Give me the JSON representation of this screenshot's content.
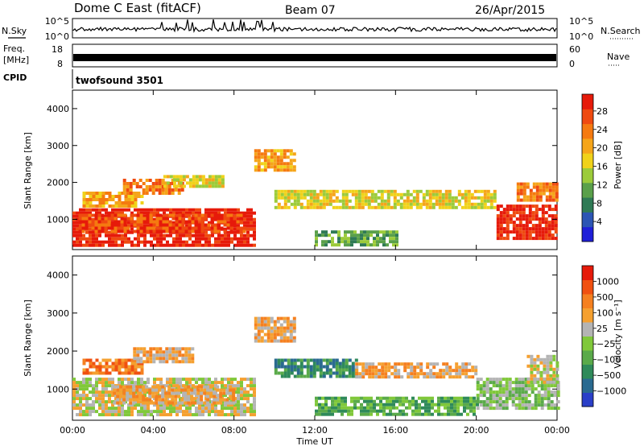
{
  "header": {
    "station": "Dome C East (fitACF)",
    "beam": "Beam 07",
    "date": "26/Apr/2015"
  },
  "aux_panels": {
    "nsky_label": "N.Sky",
    "nsearch_label": "N.Search",
    "nsky_ticks": [
      "10^5",
      "10^0"
    ],
    "nsearch_ticks": [
      "10^5",
      "10^0"
    ],
    "freq_label_1": "Freq.",
    "freq_label_2": "[MHz]",
    "freq_ticks": [
      "18",
      "8"
    ],
    "nave_label": "Nave",
    "nave_ticks": [
      "60",
      "0"
    ],
    "cpid_label": "CPID",
    "cpid_value": "twofsound 3501"
  },
  "chart_data": [
    {
      "type": "heatmap",
      "panel": "power",
      "ylabel": "Slant Range [km]",
      "yticks": [
        1000,
        2000,
        3000,
        4000
      ],
      "ylim": [
        180,
        4500
      ],
      "xticks": [
        "00:00",
        "04:00",
        "08:00",
        "12:00",
        "16:00",
        "20:00",
        "00:00"
      ],
      "xlim_hours": [
        0,
        24
      ],
      "colorbar": {
        "label": "Power [dB]",
        "ticks": [
          "4",
          "8",
          "12",
          "16",
          "20",
          "24",
          "28"
        ],
        "colors": [
          "#1f1fd8",
          "#2c55b4",
          "#2f7a55",
          "#5aa04a",
          "#9ccb3a",
          "#f0d21a",
          "#f5a51a",
          "#f57a10",
          "#ef4a10",
          "#e61a0a"
        ]
      },
      "regions": [
        {
          "t0": 0.0,
          "t1": 9.0,
          "r0": 300,
          "r1": 1300,
          "level": 9
        },
        {
          "t0": 0.3,
          "t1": 8.5,
          "r0": 700,
          "r1": 1150,
          "level": 8
        },
        {
          "t0": 0.5,
          "t1": 3.5,
          "r0": 1350,
          "r1": 1750,
          "level": 6
        },
        {
          "t0": 2.5,
          "t1": 5.5,
          "r0": 1700,
          "r1": 2100,
          "level": 7
        },
        {
          "t0": 4.5,
          "t1": 7.5,
          "r0": 1900,
          "r1": 2200,
          "level": 5
        },
        {
          "t0": 9.0,
          "t1": 11.0,
          "r0": 2300,
          "r1": 2900,
          "level": 6
        },
        {
          "t0": 10.0,
          "t1": 21.0,
          "r0": 1300,
          "r1": 1800,
          "level": 5
        },
        {
          "t0": 12.0,
          "t1": 16.0,
          "r0": 300,
          "r1": 700,
          "level": 3
        },
        {
          "t0": 21.0,
          "t1": 24.0,
          "r0": 500,
          "r1": 1400,
          "level": 9
        },
        {
          "t0": 22.0,
          "t1": 24.0,
          "r0": 1500,
          "r1": 2000,
          "level": 7
        }
      ]
    },
    {
      "type": "heatmap",
      "panel": "velocity",
      "ylabel": "Slant Range [km]",
      "yticks": [
        1000,
        2000,
        3000,
        4000
      ],
      "ylim": [
        180,
        4500
      ],
      "xticks": [
        "00:00",
        "04:00",
        "08:00",
        "12:00",
        "16:00",
        "20:00",
        "00:00"
      ],
      "xlim_hours": [
        0,
        24
      ],
      "xlabel": "Time UT",
      "colorbar": {
        "label": "Velocity [m s⁻¹]",
        "ticks": [
          "1000",
          "500",
          "100",
          "25",
          "−25",
          "−100",
          "−500",
          "−1000"
        ],
        "colors": [
          "#2a3fc8",
          "#2a6a90",
          "#2f8a5a",
          "#5aaa4a",
          "#80c83a",
          "#b4b4b4",
          "#f5a030",
          "#f58020",
          "#f05010",
          "#e61a0a"
        ]
      },
      "regions": [
        {
          "t0": 0.0,
          "t1": 9.0,
          "r0": 300,
          "r1": 1300,
          "level": 5
        },
        {
          "t0": 2.0,
          "t1": 8.0,
          "r0": 600,
          "r1": 1100,
          "level": 6
        },
        {
          "t0": 0.5,
          "t1": 3.5,
          "r0": 1400,
          "r1": 1800,
          "level": 7
        },
        {
          "t0": 3.0,
          "t1": 6.0,
          "r0": 1750,
          "r1": 2100,
          "level": 6
        },
        {
          "t0": 9.0,
          "t1": 11.0,
          "r0": 2300,
          "r1": 2900,
          "level": 6
        },
        {
          "t0": 10.0,
          "t1": 14.0,
          "r0": 1300,
          "r1": 1800,
          "level": 2
        },
        {
          "t0": 14.0,
          "t1": 20.0,
          "r0": 1300,
          "r1": 1700,
          "level": 6
        },
        {
          "t0": 12.0,
          "t1": 20.0,
          "r0": 300,
          "r1": 800,
          "level": 3
        },
        {
          "t0": 20.0,
          "t1": 24.0,
          "r0": 500,
          "r1": 1300,
          "level": 4
        },
        {
          "t0": 22.5,
          "t1": 24.0,
          "r0": 1200,
          "r1": 1900,
          "level": 5
        }
      ]
    }
  ]
}
